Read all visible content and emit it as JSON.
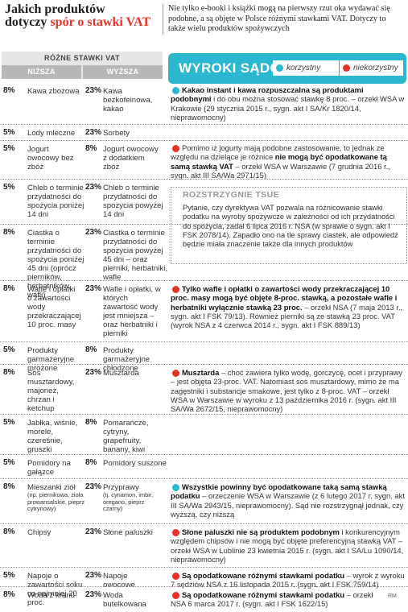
{
  "title": {
    "line1": "Jakich produktów",
    "line2a": "dotyczy ",
    "line2b": "spór o stawki VAT"
  },
  "intro": "Nie tylko e-booki i książki mogą na pierwszy rzut oka wydawać się podobne, a są objęte w Polsce różnymi stawkami VAT. Dotyczy to także wielu produktów spożywczych",
  "header": {
    "vat": "RÓŻNE STAWKI VAT",
    "lower": "NIŻSZA",
    "higher": "WYŻSZA",
    "rulings": "WYROKI SĄDÓW",
    "legend_fav": "korzystny",
    "legend_unfav": "niekorzystny"
  },
  "colors": {
    "accent": "#2ab7cf",
    "red": "#e6332a",
    "header_gray": "#b7b7b7"
  },
  "rows": [
    {
      "lp": "8%",
      "li": "Kawa zbożowa",
      "hp": "23%",
      "hi": "Kawa bezkofeinowa, kakao",
      "status": "korzystny",
      "bold": "Kakao instant i kawa rozpuszczalna są produktami podobnymi",
      "text": " i do obu można stosować stawkę 8 proc. – orzekł WSA w Krakowie (29 stycznia 2015 r., sygn. akt I SA/Kr 1820/14, nieprawomocny)"
    },
    {
      "lp": "5%",
      "li": "Lody mleczne",
      "hp": "23%",
      "hi": "Sorbety"
    },
    {
      "lp": "5%",
      "li": "Jogurt owocowy bez zbóż",
      "hp": "8%",
      "hi": "Jogurt owocowy z dodatkiem zbóż",
      "status": "niekorzystny",
      "text1": "Pomimo iż jogurty mają podobne zastosowanie, to jednak ze względu na dzielące je różnice ",
      "bold": "nie mogą być opodatkowane tą samą stawką VAT",
      "text2": " – orzekł WSA w Warszawie (7 grudnia 2016 r., sygn. akt III SA/Wa 2971/15)"
    },
    {
      "lp": "5%",
      "li": "Chleb o terminie przydatności do spożycia poniżej 14 dni",
      "hp": "23%",
      "hi": "Chleb o terminie przydatności do spożycia powyżej 14 dni"
    },
    {
      "lp": "8%",
      "li": "Ciastka o terminie przydatności do spożycia poniżej 45 dni (oprócz pierników, herbatników, wafli)",
      "hp": "23%",
      "hi": "Ciastka o terminie przydatności do spożycia powyżej 45 dni – oraz pierniki, herbatniki, wafle"
    },
    {
      "lp": "8%",
      "li": "Wafle i opłatki o zawartości wody przekraczającej 10 proc. masy",
      "hp": "23%",
      "hi": "Wafle i opłatki, w których zawartość wody jest mniejsza – oraz herbatniki i pierniki",
      "status": "niekorzystny",
      "bold": "Tylko wafle i opłatki o zawartości wody przekraczającej 10 proc. masy mogą być objęte 8-proc. stawką, a pozostałe wafle i herbatniki wyłącznie stawką 23 proc.",
      "text": " – orzekł NSA (7 maja 2013 r., sygn. akt I FSK 79/13). Również pierniki są ze stawką 23 proc. VAT (wyrok NSA z 4 czerwca 2014 r., sygn. akt I FSK 889/13)"
    },
    {
      "lp": "5%",
      "li": "Produkty garmażeryjne mrożone",
      "hp": "8%",
      "hi": "Produkty garmażeryjne chłodzone"
    },
    {
      "lp": "8%",
      "li": "Sos musztardowy, majonez, chrzan i ketchup",
      "hp": "23%",
      "hi": "Musztarda",
      "status": "niekorzystny",
      "bold": "Musztarda",
      "text": " – choć zawiera tylko wodę, gorczycę, ocet i przyprawy – jest objęta 23-proc. VAT. Natomiast sos musztardowy, mimo że ma zagęstniki i substancje smakowe, jest tylko z 8-proc. VAT – orzekł WSA w Warszawie w wyroku z 13 października 2016 r. (sygn. akt III SA/Wa 2672/15, nieprawomocny)"
    },
    {
      "lp": "5%",
      "li": "Jabłka, wiśnie, morele, czereśnie, gruszki",
      "hp": "8%",
      "hi": "Pomarańcze, cytryny, grapefruity, banany, kiwi"
    },
    {
      "lp": "5%",
      "li": "Pomidory na gałązce",
      "hp": "8%",
      "hi": "Pomidory suszone"
    },
    {
      "lp": "8%",
      "li": "Mieszanki ziół",
      "lis": "(np. piernikowa, zioła prowansalskie, pieprz cytrynowy)",
      "hp": "23%",
      "hi": "Przyprawy",
      "his": "(tj. cynamon, imbir, oregano, pieprz czarny)",
      "status": "korzystny",
      "bold": "Wszystkie powinny być opodatkowane taką samą stawką podatku",
      "text": " – orzeczenie WSA w Warszawie (z 6 lutego 2017 r. sygn. akt III SA/Wa 2943/15, nieprawomocny). Sąd nie rozstrzygnął jednak, czy wyższą, czy niższą"
    },
    {
      "lp": "8%",
      "li": "Chipsy",
      "hp": "23%",
      "hi": "Słone paluszki",
      "status": "niekorzystny",
      "bold": "Słone paluszki nie są produktem podobnym",
      "text": " i konkurencyjnym względem chipsów i nie mogą być objęte preferencyjną stawką VAT – orzekł WSA w Lublinie 23 kwietnia 2015 r. (sygn. akt I SA/Lu 1090/14, nieprawomocny)"
    },
    {
      "lp": "5%",
      "li": "Napoje o zawartości soku co najmniej 20 proc.",
      "hp": "23%",
      "hi": "Napoje owocowe",
      "status": "niekorzystny",
      "bold": "Są opodatkowane różnymi stawkami podatku",
      "text": " – wyrok z wyroku 7 sędziów NSA z 16 listopada 2015 r. (sygn. akt I FSK 759/14)"
    },
    {
      "lp": "8%",
      "li": "Woda z kranu",
      "hp": "23%",
      "hi": "Woda butelkowana",
      "status": "niekorzystny",
      "bold": "Są opodatkowane różnymi stawkami podatku",
      "text": " – orzekł NSA 6 marca 2017 r. (sygn. akt I FSK 1622/15)"
    }
  ],
  "tsue": {
    "heading": "ROZSTRZYGNIE TSUE",
    "text": "Pytanie, czy dyrektywa VAT pozwala na różnicowanie stawki podatku na wyroby spożywcze w zależności od ich przydatności do spożycia, zadał 6 lipca 2016 r. NSA (w sprawie o sygn. akt I FSK 2078/14). Zapadło ono na tle sprawy ciastek, ale odpowiedź będzie miała znaczenie także dla innych produktów"
  },
  "credit": "RM"
}
